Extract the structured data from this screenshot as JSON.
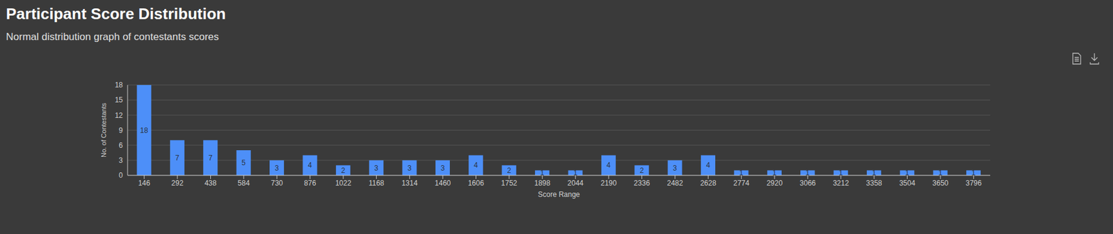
{
  "chart_data": {
    "type": "bar",
    "title": "Participant Score Distribution",
    "subtitle": "Normal distribution graph of contestants scores",
    "x_label": "Score Range",
    "y_label": "No. of Contestants",
    "categories": [
      "146",
      "292",
      "438",
      "584",
      "730",
      "876",
      "1022",
      "1168",
      "1314",
      "1460",
      "1606",
      "1752",
      "1898",
      "2044",
      "2190",
      "2336",
      "2482",
      "2628",
      "2774",
      "2920",
      "3066",
      "3212",
      "3358",
      "3504",
      "3650",
      "3796"
    ],
    "values": [
      18,
      7,
      7,
      5,
      3,
      4,
      2,
      3,
      3,
      3,
      4,
      2,
      1,
      1,
      4,
      2,
      3,
      4,
      1,
      1,
      1,
      1,
      1,
      1,
      1,
      1
    ],
    "color": "#4d8ff8",
    "ylim": [
      0,
      18
    ],
    "yticks": [
      0,
      3,
      6,
      9,
      12,
      15,
      18
    ],
    "grid": true,
    "data_labels": true
  }
}
